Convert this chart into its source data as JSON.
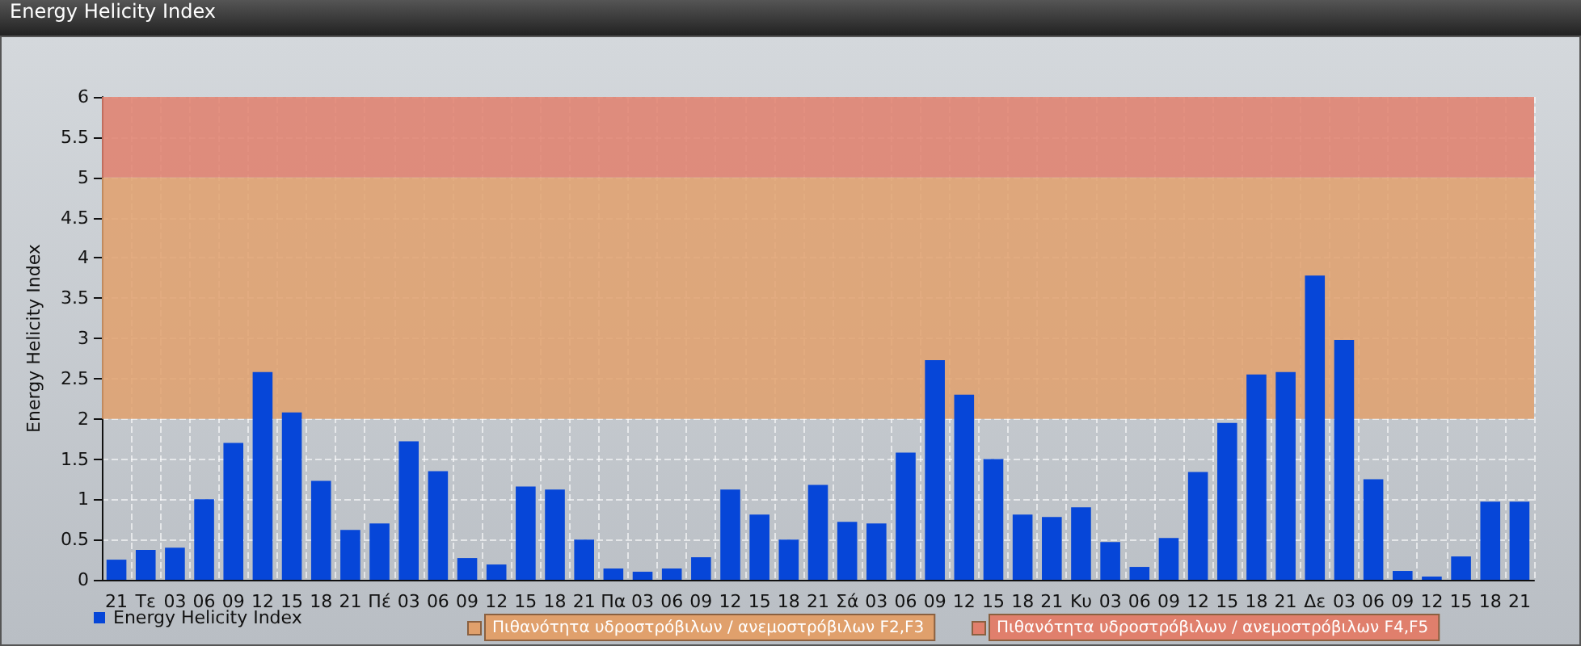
{
  "chart_data": {
    "type": "bar",
    "title": "Energy Helicity Index",
    "ylabel": "Energy Helicity Index",
    "categories": [
      "21",
      "Τε",
      "03",
      "06",
      "09",
      "12",
      "15",
      "18",
      "21",
      "Πέ",
      "03",
      "06",
      "09",
      "12",
      "15",
      "18",
      "21",
      "Πα",
      "03",
      "06",
      "09",
      "12",
      "15",
      "18",
      "21",
      "Σά",
      "03",
      "06",
      "09",
      "12",
      "15",
      "18",
      "21",
      "Κυ",
      "03",
      "06",
      "09",
      "12",
      "15",
      "18",
      "21",
      "Δε",
      "03",
      "06",
      "09",
      "12",
      "15",
      "18",
      "21"
    ],
    "series": [
      {
        "name": "Energy Helicity Index",
        "color": "#0646d8",
        "values": [
          0.25,
          0.37,
          0.4,
          1.0,
          1.7,
          2.58,
          2.08,
          1.23,
          0.62,
          0.7,
          1.72,
          1.35,
          0.27,
          0.19,
          1.16,
          1.12,
          0.5,
          0.14,
          0.1,
          0.14,
          0.28,
          1.12,
          0.81,
          0.5,
          1.18,
          0.72,
          0.7,
          1.58,
          2.73,
          2.3,
          1.5,
          0.81,
          0.78,
          0.9,
          0.47,
          0.16,
          0.52,
          1.34,
          1.95,
          2.55,
          2.58,
          3.78,
          2.98,
          1.25,
          0.11,
          0.04,
          0.29,
          0.97,
          0.97
        ]
      }
    ],
    "ylim": [
      0,
      6
    ],
    "yticks": [
      0,
      0.5,
      1,
      1.5,
      2,
      2.5,
      3,
      3.5,
      4,
      4.5,
      5,
      5.5,
      6
    ],
    "bands": [
      {
        "axis": "y",
        "from": 2,
        "to": 5,
        "label": "Πιθανότητα υδροστρόβιλων / ανεμοστρόβιλων F2,F3",
        "color": "#e0a06c"
      },
      {
        "axis": "y",
        "from": 5,
        "to": 6,
        "label": "Πιθανότητα υδροστρόβιλων / ανεμοστρόβιλων F4,F5",
        "color": "#e07f6c"
      }
    ],
    "grid": true,
    "legend": "bottom left"
  }
}
